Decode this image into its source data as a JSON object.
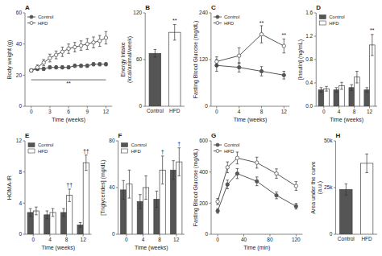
{
  "chart_data": [
    {
      "type": "line",
      "title": "A",
      "xlabel": "Time (weeks)",
      "ylabel": "Body weight (g)",
      "x": [
        0,
        1,
        2,
        3,
        4,
        5,
        6,
        7,
        8,
        9,
        10,
        11,
        12
      ],
      "xlim": [
        -1,
        13
      ],
      "xticks": [
        0,
        3,
        6,
        9,
        12
      ],
      "ylim": [
        0,
        60
      ],
      "yticks": [
        0,
        20,
        40,
        60
      ],
      "legend": "upper left",
      "series": [
        {
          "name": "Control",
          "color": "#555555",
          "marker": "circle",
          "values": [
            23,
            24,
            24,
            25,
            25,
            25,
            25,
            26,
            26,
            26,
            27,
            27,
            27
          ],
          "error": [
            1,
            1,
            1,
            1,
            1,
            1,
            1,
            1,
            1,
            1,
            1,
            1,
            1
          ]
        },
        {
          "name": "HFD",
          "color": "#555555",
          "marker": "open-circle",
          "values": [
            23,
            25,
            28,
            31,
            33,
            35,
            37,
            38,
            39,
            40,
            41,
            42,
            44
          ],
          "error": [
            1,
            1.5,
            2,
            2.5,
            2.5,
            3,
            3,
            3,
            3,
            3.5,
            3.5,
            3.5,
            4
          ]
        }
      ],
      "annotations": [
        {
          "text": "**",
          "x0": 0,
          "x1": 12,
          "y": 17
        }
      ]
    },
    {
      "type": "bar",
      "title": "B",
      "ylabel": "Energy Intake\n(kcal/animal/week)",
      "categories": [
        "Control",
        "HFD"
      ],
      "ylim": [
        0,
        120
      ],
      "yticks": [
        0,
        60,
        120
      ],
      "series": [
        {
          "values": [
            68,
            95
          ],
          "error": [
            5,
            10
          ],
          "colors": [
            "#555555",
            "#ffffff"
          ]
        }
      ],
      "annotations": [
        {
          "text": "**",
          "series": 0,
          "index": 1
        }
      ]
    },
    {
      "type": "line",
      "title": "C",
      "xlabel": "Time (weeks)",
      "ylabel": "Fasting Blood Glucose (mg/dL)",
      "x": [
        0,
        4,
        8,
        12
      ],
      "xlim": [
        -1,
        13
      ],
      "xticks": [
        0,
        4,
        8,
        12
      ],
      "ylim": [
        0,
        240
      ],
      "yticks": [
        0,
        120,
        240
      ],
      "legend": "upper left",
      "series": [
        {
          "name": "Control",
          "color": "#555555",
          "marker": "circle",
          "values": [
            105,
            100,
            90,
            80
          ],
          "error": [
            15,
            12,
            12,
            10
          ]
        },
        {
          "name": "HFD",
          "color": "#555555",
          "marker": "open-circle",
          "values": [
            115,
            130,
            185,
            155
          ],
          "error": [
            12,
            20,
            22,
            18
          ]
        }
      ],
      "annotations": [
        {
          "text": "**",
          "x": 8,
          "y": 210
        },
        {
          "text": "**",
          "x": 12,
          "y": 178
        }
      ]
    },
    {
      "type": "bar",
      "title": "D",
      "xlabel": "Time (weeks)",
      "ylabel": "[Insulin] (ng/mL)",
      "x": [
        0,
        4,
        8,
        12
      ],
      "xlim": [
        -2,
        14
      ],
      "xticks": [
        0,
        4,
        8,
        12
      ],
      "ylim": [
        0,
        1.6
      ],
      "yticks": [
        {
          "value": 0,
          "label": "0.0"
        },
        0.4,
        0.8,
        1.2,
        1.6
      ],
      "legend": "upper left",
      "series": [
        {
          "name": "Control",
          "color": "#555555",
          "values": [
            0.28,
            0.28,
            0.32,
            0.28
          ],
          "error": [
            0.04,
            0.04,
            0.05,
            0.04
          ]
        },
        {
          "name": "HFD",
          "color": "#ffffff",
          "values": [
            0.3,
            0.35,
            0.5,
            1.05
          ],
          "error": [
            0.04,
            0.06,
            0.1,
            0.18
          ]
        }
      ],
      "annotations": [
        {
          "text": "**",
          "series": 1,
          "index": 3
        }
      ]
    },
    {
      "type": "bar",
      "title": "E",
      "xlabel": "Time (weeks)",
      "ylabel": "HOMA-IR",
      "x": [
        0,
        4,
        8,
        12
      ],
      "xlim": [
        -2,
        14
      ],
      "xticks": [
        0,
        4,
        8,
        12
      ],
      "ylim": [
        0,
        12
      ],
      "yticks": [
        0,
        4,
        8,
        12
      ],
      "legend": "upper left",
      "series": [
        {
          "name": "Control",
          "color": "#555555",
          "values": [
            2.8,
            2.5,
            2.8,
            1.2
          ],
          "error": [
            0.5,
            0.5,
            0.5,
            0.3
          ]
        },
        {
          "name": "HFD",
          "color": "#ffffff",
          "values": [
            3.0,
            2.8,
            5.0,
            9.2
          ],
          "error": [
            0.5,
            0.5,
            0.8,
            1.0
          ]
        }
      ],
      "annotations": [
        {
          "text": "††",
          "series": 1,
          "index": 2
        },
        {
          "text": "††",
          "series": 1,
          "index": 3
        }
      ]
    },
    {
      "type": "bar",
      "title": "F",
      "xlabel": "Time (weeks)",
      "ylabel": "[Triglycerides] (mg/dL)",
      "x": [
        0,
        4,
        8,
        12
      ],
      "xlim": [
        -2,
        14
      ],
      "xticks": [
        0,
        4,
        8,
        12
      ],
      "ylim": [
        0,
        80
      ],
      "yticks": [
        0,
        40,
        80
      ],
      "legend": "upper left",
      "series": [
        {
          "name": "Control",
          "color": "#555555",
          "values": [
            38,
            28,
            30,
            55
          ],
          "error": [
            8,
            6,
            7,
            8
          ]
        },
        {
          "name": "HFD",
          "color": "#ffffff",
          "values": [
            43,
            40,
            55,
            62
          ],
          "error": [
            12,
            10,
            12,
            12
          ]
        }
      ],
      "annotations": [
        {
          "text": "†",
          "series": 1,
          "index": 2
        },
        {
          "text": "†",
          "series": 1,
          "index": 3
        }
      ]
    },
    {
      "type": "line",
      "title": "G",
      "xlabel": "Time (min)",
      "ylabel": "Fasting Blood Glucose (mg/dL)",
      "x": [
        0,
        15,
        30,
        60,
        90,
        120
      ],
      "xlim": [
        -10,
        130
      ],
      "xticks": [
        0,
        40,
        80,
        120
      ],
      "ylim": [
        0,
        600
      ],
      "yticks": [
        0,
        200,
        400,
        600
      ],
      "legend": "upper left",
      "series": [
        {
          "name": "Control",
          "color": "#555555",
          "marker": "circle",
          "values": [
            150,
            320,
            390,
            340,
            250,
            180
          ],
          "error": [
            15,
            28,
            32,
            28,
            22,
            18
          ]
        },
        {
          "name": "HFD",
          "color": "#555555",
          "marker": "open-circle",
          "values": [
            210,
            430,
            490,
            460,
            390,
            310
          ],
          "error": [
            20,
            35,
            38,
            35,
            30,
            28
          ]
        }
      ]
    },
    {
      "type": "bar",
      "title": "H",
      "ylabel": "Area under the curve\n(a.u.)",
      "categories": [
        "Control",
        "HFD"
      ],
      "ylim": [
        0,
        50000
      ],
      "yticks": [
        0,
        {
          "value": 25000,
          "label": "25k"
        },
        {
          "value": 50000,
          "label": "50k"
        }
      ],
      "series": [
        {
          "values": [
            24000,
            38000
          ],
          "error": [
            3000,
            5000
          ],
          "colors": [
            "#555555",
            "#ffffff"
          ]
        }
      ]
    }
  ]
}
